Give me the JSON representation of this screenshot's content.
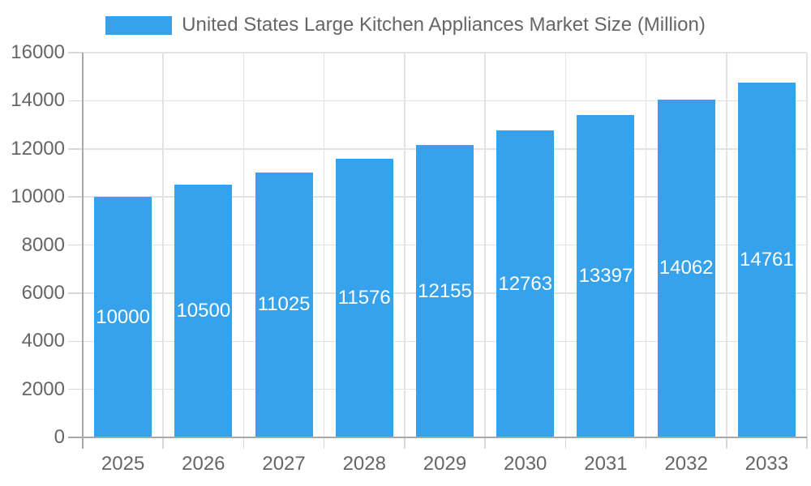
{
  "chart_data": {
    "type": "bar",
    "title": "United States Large Kitchen Appliances Market Size (Million)",
    "categories": [
      "2025",
      "2026",
      "2027",
      "2028",
      "2029",
      "2030",
      "2031",
      "2032",
      "2033"
    ],
    "values": [
      10000,
      10500,
      11025,
      11576,
      12155,
      12763,
      13397,
      14062,
      14761
    ],
    "value_labels": [
      "10000",
      "10500",
      "11025",
      "11576",
      "12155",
      "12763",
      "13397",
      "14062",
      "14761"
    ],
    "ytick_labels": [
      "0",
      "2000",
      "4000",
      "6000",
      "8000",
      "10000",
      "12000",
      "14000",
      "16000"
    ],
    "xlabel": "",
    "ylabel": "",
    "ylim": [
      0,
      16000
    ],
    "ytick_step": 2000,
    "grid": true,
    "legend_position": "top",
    "colors": {
      "bar": "#36A2EB",
      "bar_label": "#FFFFFF",
      "axis_text": "#666666",
      "gridline": "#E3E3E3",
      "tick": "#D8D8D8",
      "axis_line": "#A8A8A8",
      "background": "#FFFFFF"
    }
  }
}
